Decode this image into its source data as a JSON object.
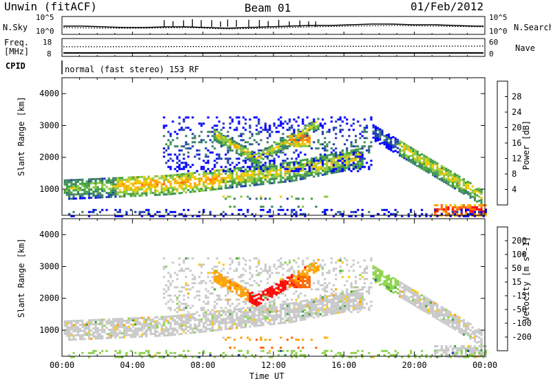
{
  "header": {
    "station": "Unwin (fitACF)",
    "beam": "Beam 01",
    "date": "01/Feb/2012"
  },
  "noise_panel": {
    "left_label": "N.Sky",
    "left_ticks": [
      "10^5",
      "10^0"
    ],
    "right_label": "N.Search",
    "right_ticks": [
      "10^5",
      "10^0"
    ]
  },
  "freq_panel": {
    "left_label_1": "Freq.",
    "left_label_2": "[MHz]",
    "left_ticks": [
      "18",
      "8"
    ],
    "right_label": "Nave",
    "right_ticks": [
      "60",
      "0"
    ]
  },
  "cpid_panel": {
    "label": "CPID",
    "text": "normal (fast stereo) 153 RF"
  },
  "colors": {
    "power_scale": [
      "#0000ff",
      "#1f3fae",
      "#3a7e6a",
      "#3fa03f",
      "#8cc83c",
      "#f0c800",
      "#ffa000",
      "#ff6400",
      "#ff0000"
    ],
    "velocity_scale": [
      "#ff0000",
      "#ff6400",
      "#ffa000",
      "#ffc800",
      "#c8c8c8",
      "#8cd24a",
      "#3fa03f",
      "#1f3fae",
      "#0000ff"
    ]
  },
  "chart_data": [
    {
      "type": "heatmap",
      "name": "power",
      "ylabel": "Slant Range [km]",
      "yticks": [
        "4000",
        "3000",
        "2000",
        "1000"
      ],
      "ylim": [
        180,
        4500
      ],
      "xlim_hours": [
        0,
        24
      ],
      "colorbar_label": "Power [dB]",
      "colorbar_ticks": [
        "28",
        "24",
        "20",
        "16",
        "12",
        "8",
        "4"
      ],
      "colorbar_range": [
        0,
        32
      ]
    },
    {
      "type": "heatmap",
      "name": "velocity",
      "ylabel": "Slant Range [km]",
      "yticks": [
        "4000",
        "3000",
        "2000",
        "1000"
      ],
      "ylim": [
        180,
        4500
      ],
      "xlim_hours": [
        0,
        24
      ],
      "xticks": [
        "00:00",
        "04:00",
        "08:00",
        "12:00",
        "16:00",
        "20:00",
        "00:00"
      ],
      "xlabel": "Time UT",
      "colorbar_label": "Velocity [m s^-1]",
      "colorbar_ticks": [
        "200",
        "100",
        "50",
        "15",
        "-15",
        "-50",
        "-100",
        "-200"
      ]
    }
  ]
}
